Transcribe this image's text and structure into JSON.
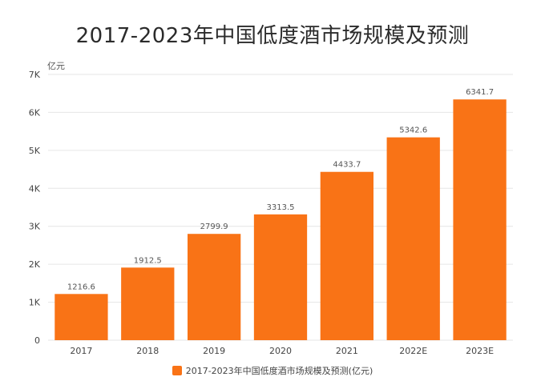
{
  "chart_data": {
    "type": "bar",
    "title": "2017-2023年中国低度酒市场规模及预测",
    "ylabel": "亿元",
    "categories": [
      "2017",
      "2018",
      "2019",
      "2020",
      "2021",
      "2022E",
      "2023E"
    ],
    "series": [
      {
        "name": "2017-2023年中国低度酒市场规模及预测(亿元)",
        "values": [
          1216.6,
          1912.5,
          2799.9,
          3313.5,
          4433.7,
          5342.6,
          6341.7
        ]
      }
    ],
    "value_labels": [
      "1216.6",
      "1912.5",
      "2799.9",
      "3313.5",
      "4433.7",
      "5342.6",
      "6341.7"
    ],
    "ylim": [
      0,
      7000
    ],
    "yticks": [
      0,
      1000,
      2000,
      3000,
      4000,
      5000,
      6000,
      7000
    ],
    "ytick_labels": [
      "0",
      "1K",
      "2K",
      "3K",
      "4K",
      "5K",
      "6K",
      "7K"
    ],
    "grid": true,
    "legend_position": "bottom",
    "colors": {
      "bar": "#f97316",
      "grid": "#e6e6e6",
      "axis_text": "#444444"
    }
  }
}
